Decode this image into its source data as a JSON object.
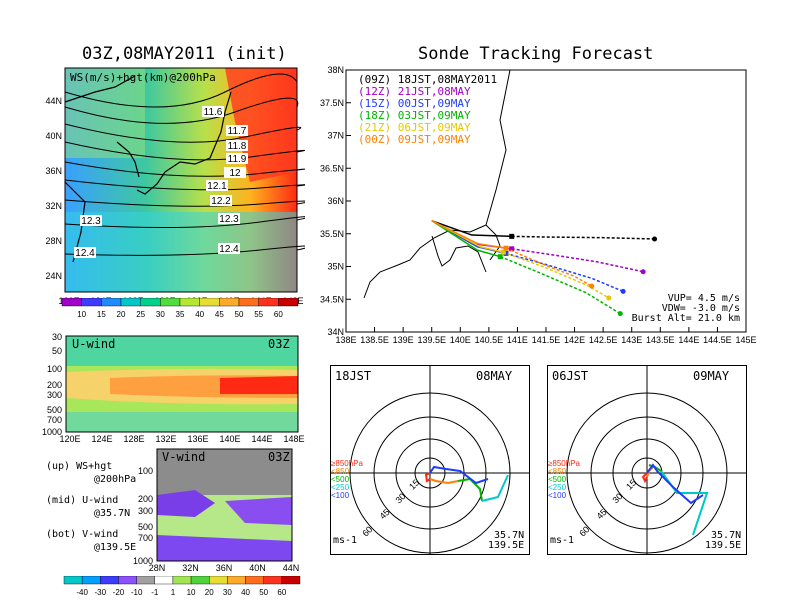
{
  "left": {
    "title": "03Z,08MAY2011 (init)",
    "map": {
      "overlay_label": "WS(m/s)+hgt(km)@200hPa",
      "lat_ticks": [
        "44N",
        "40N",
        "36N",
        "32N",
        "28N",
        "24N"
      ],
      "lon_ticks": [
        "120E",
        "124E",
        "128E",
        "132E",
        "136E",
        "140E",
        "144E",
        "148E"
      ],
      "height_labels": [
        "11.6",
        "11.7",
        "11.8",
        "11.9",
        "12",
        "12.1",
        "12.2",
        "12.3",
        "12.3",
        "12.4",
        "12.4"
      ],
      "colorbar": [
        "10",
        "15",
        "20",
        "25",
        "30",
        "35",
        "40",
        "45",
        "50",
        "55",
        "60"
      ]
    },
    "uwind": {
      "title": "U-wind",
      "time": "03Z",
      "p_ticks": [
        "30",
        "50",
        "100",
        "200",
        "300",
        "500",
        "700",
        "1000"
      ],
      "lon_ticks": [
        "120E",
        "124E",
        "128E",
        "132E",
        "136E",
        "140E",
        "144E",
        "148E"
      ]
    },
    "vwind": {
      "title": "V-wind",
      "time": "03Z",
      "p_ticks": [
        "100",
        "200",
        "300",
        "500",
        "700",
        "1000"
      ],
      "lat_ticks": [
        "28N",
        "32N",
        "36N",
        "40N",
        "44N"
      ],
      "colorbar": [
        "-40",
        "-30",
        "-20",
        "-10",
        "-1",
        "1",
        "10",
        "20",
        "30",
        "40",
        "50",
        "60"
      ]
    },
    "notes": [
      {
        "key": "(up)",
        "text": "WS+hgt"
      },
      {
        "key": "",
        "text": "@200hPa"
      },
      {
        "key": "(mid)",
        "text": "U-wind"
      },
      {
        "key": "",
        "text": "@35.7N"
      },
      {
        "key": "(bot)",
        "text": "V-wind"
      },
      {
        "key": "",
        "text": "@139.5E"
      }
    ]
  },
  "forecast": {
    "title": "Sonde Tracking Forecast",
    "legend": [
      {
        "utc": "(09Z)",
        "jst": "18JST,08MAY2011",
        "color": "#000000"
      },
      {
        "utc": "(12Z)",
        "jst": "21JST,08MAY",
        "color": "#a000c8"
      },
      {
        "utc": "(15Z)",
        "jst": "00JST,09MAY",
        "color": "#1e3cff"
      },
      {
        "utc": "(18Z)",
        "jst": "03JST,09MAY",
        "color": "#00b400"
      },
      {
        "utc": "(21Z)",
        "jst": "06JST,09MAY",
        "color": "#e6c800"
      },
      {
        "utc": "(00Z)",
        "jst": "09JST,09MAY",
        "color": "#ff8000"
      }
    ],
    "params": [
      "VUP= 4.5 m/s",
      "VDW= -3.0 m/s",
      "Burst Alt= 21.0 km"
    ]
  },
  "hodographs": [
    {
      "time": "18JST",
      "date": "08MAY",
      "pos": "35.7N",
      "pos2": "139.5E",
      "unit": "ms-1",
      "rings": [
        "15",
        "30",
        "45",
        "60"
      ],
      "levels": [
        "≥850hPa",
        "<850",
        "<500",
        "<250",
        "<100"
      ]
    },
    {
      "time": "06JST",
      "date": "09MAY",
      "pos": "35.7N",
      "pos2": "139.5E",
      "unit": "ms-1",
      "rings": [
        "15",
        "30",
        "45",
        "60"
      ],
      "levels": [
        "≥850hPa",
        "<850",
        "<500",
        "<250",
        "<100"
      ]
    }
  ],
  "chart_data": {
    "type": "line",
    "title": "Sonde Tracking Forecast",
    "xlabel": "",
    "ylabel": "",
    "x_ticks": [
      "138E",
      "138.5E",
      "139E",
      "139.5E",
      "140E",
      "140.5E",
      "141E",
      "141.5E",
      "142E",
      "142.5E",
      "143E",
      "143.5E",
      "144E",
      "144.5E",
      "145E"
    ],
    "y_ticks": [
      "34N",
      "34.5N",
      "35N",
      "35.5N",
      "36N",
      "36.5N",
      "37N",
      "37.5N",
      "38N"
    ],
    "xlim": [
      138,
      145
    ],
    "ylim": [
      34,
      38
    ],
    "series": [
      {
        "name": "(09Z) 18JST,08MAY2011",
        "color": "#000000",
        "x": [
          139.5,
          140.2,
          140.9,
          141.5,
          142.5,
          143.4
        ],
        "y": [
          35.7,
          35.48,
          35.46,
          35.45,
          35.44,
          35.42
        ]
      },
      {
        "name": "(12Z) 21JST,08MAY",
        "color": "#a000c8",
        "x": [
          139.5,
          140.2,
          140.9,
          141.6,
          142.4,
          143.2
        ],
        "y": [
          35.7,
          35.35,
          35.27,
          35.18,
          35.07,
          34.92
        ]
      },
      {
        "name": "(15Z) 00JST,09MAY",
        "color": "#1e3cff",
        "x": [
          139.5,
          140.3,
          140.8,
          141.5,
          142.3,
          142.85
        ],
        "y": [
          35.7,
          35.3,
          35.2,
          35.03,
          34.82,
          34.62
        ]
      },
      {
        "name": "(18Z) 03JST,09MAY",
        "color": "#00b400",
        "x": [
          139.5,
          140.3,
          140.7,
          141.4,
          142.2,
          142.8
        ],
        "y": [
          35.7,
          35.25,
          35.15,
          34.9,
          34.6,
          34.28
        ]
      },
      {
        "name": "(21Z) 06JST,09MAY",
        "color": "#e6c800",
        "x": [
          139.5,
          140.35,
          140.75,
          141.5,
          142.2,
          142.6
        ],
        "y": [
          35.7,
          35.3,
          35.22,
          34.98,
          34.72,
          34.52
        ]
      },
      {
        "name": "(00Z) 09JST,09MAY",
        "color": "#ff8000",
        "x": [
          139.5,
          140.3,
          140.8,
          141.4,
          142.0,
          142.3
        ],
        "y": [
          35.7,
          35.35,
          35.28,
          35.05,
          34.85,
          34.7
        ]
      }
    ],
    "grid": true
  }
}
